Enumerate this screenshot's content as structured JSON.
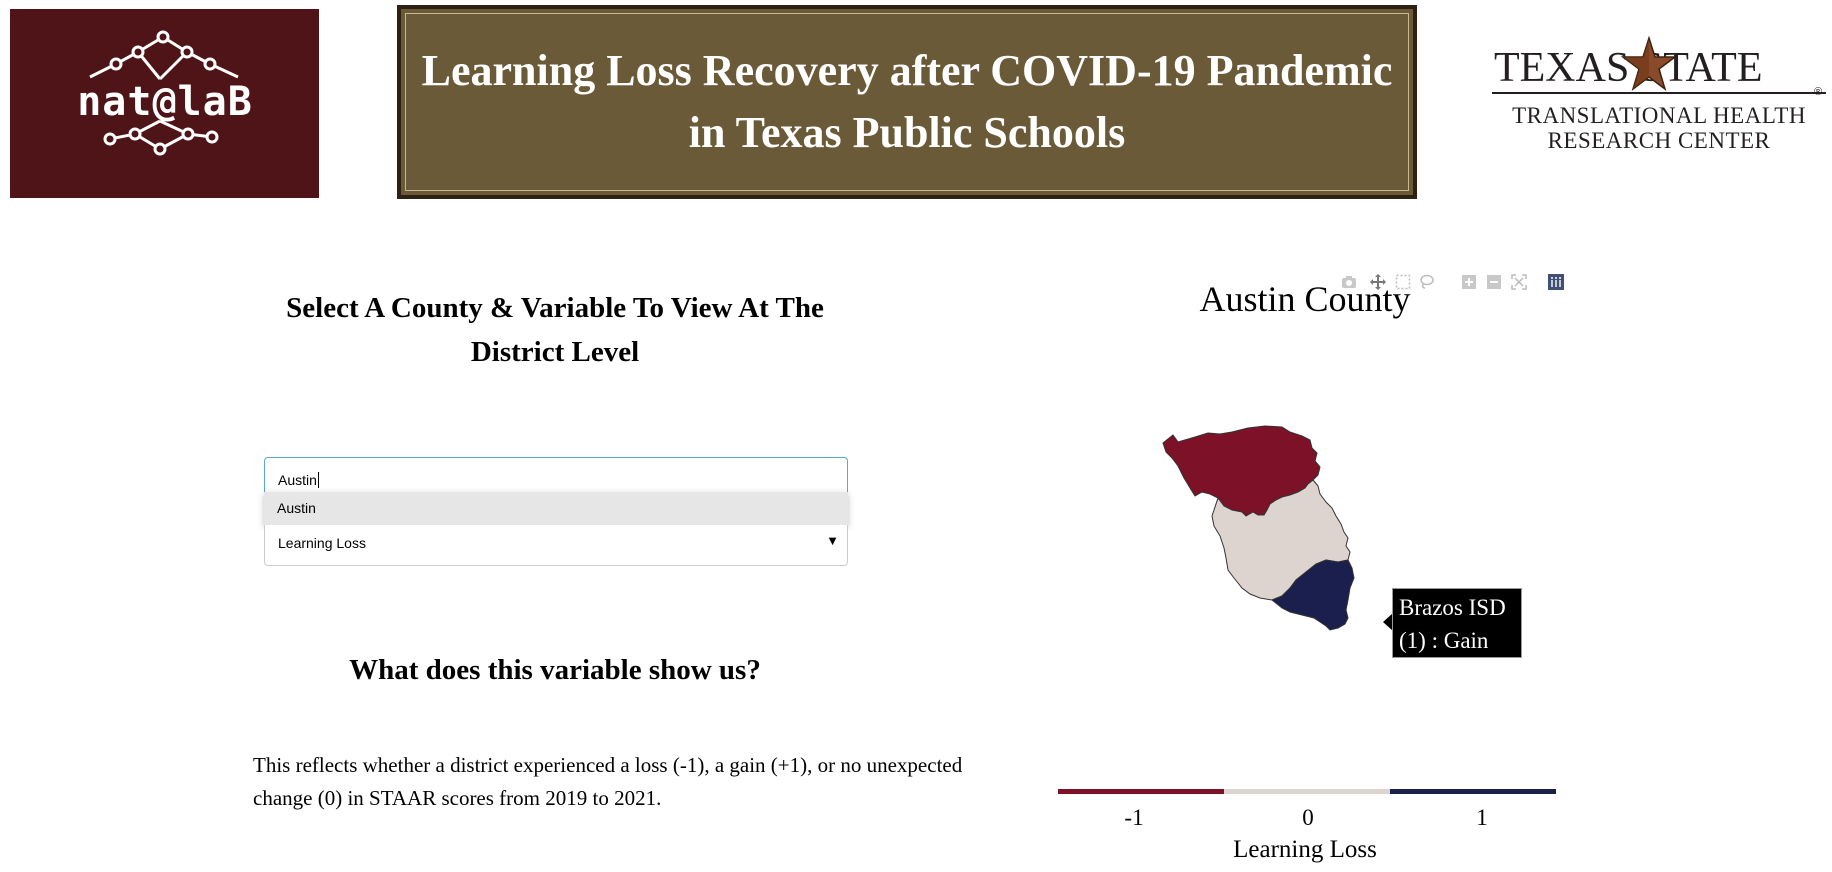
{
  "header": {
    "logo_left_text": "nat@laB",
    "banner_title": "Learning Loss Recovery after COVID-19 Pandemic in Texas Public Schools",
    "logo_right": {
      "top": "TEXAS   STATE",
      "sub1": "TRANSLATIONAL HEALTH",
      "sub2": "RESEARCH CENTER",
      "reg": "®"
    }
  },
  "controls": {
    "heading": "Select A County & Variable To View At The District Level",
    "county_input_value": "Austin",
    "county_dropdown_options": [
      "Austin"
    ],
    "variable_selected": "Learning Loss",
    "caret": "▼"
  },
  "explanation": {
    "heading": "What does this variable show us?",
    "text": "This reflects whether a district experienced a loss (-1), a gain (+1), or no unexpected change (0) in STAAR scores from 2019 to 2021."
  },
  "map": {
    "title": "Austin County",
    "tooltip_line1": "Brazos ISD",
    "tooltip_line2": "(1) : Gain",
    "colorbar_label": "Learning Loss",
    "colorbar_ticks": [
      "-1",
      "0",
      "1"
    ],
    "colors": {
      "loss": "#7d1128",
      "neutral": "#ddd3cf",
      "gain": "#1a1f4d"
    },
    "modebar_icons": [
      "camera-icon",
      "pan-icon",
      "box-select-icon",
      "lasso-icon",
      "zoom-in-icon",
      "zoom-out-icon",
      "autoscale-icon",
      "plotly-logo-icon"
    ]
  }
}
